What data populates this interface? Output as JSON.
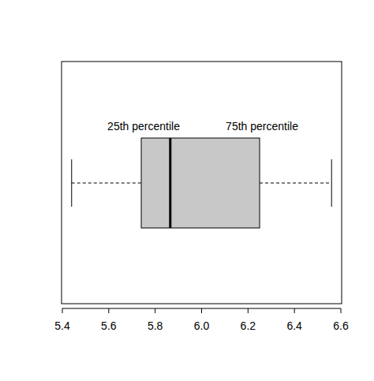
{
  "chart_data": {
    "type": "box",
    "annotations": [
      "25th percentile",
      "75th percentile"
    ],
    "min": 5.44,
    "q1": 5.74,
    "median": 5.865,
    "q3": 6.25,
    "max": 6.56,
    "xlim": [
      5.4,
      6.6
    ],
    "xticks": [
      5.4,
      5.6,
      5.8,
      {
        "value": 6,
        "label": "6.0"
      },
      6.2,
      6.4,
      6.6
    ],
    "color": "#c8c8c8"
  }
}
